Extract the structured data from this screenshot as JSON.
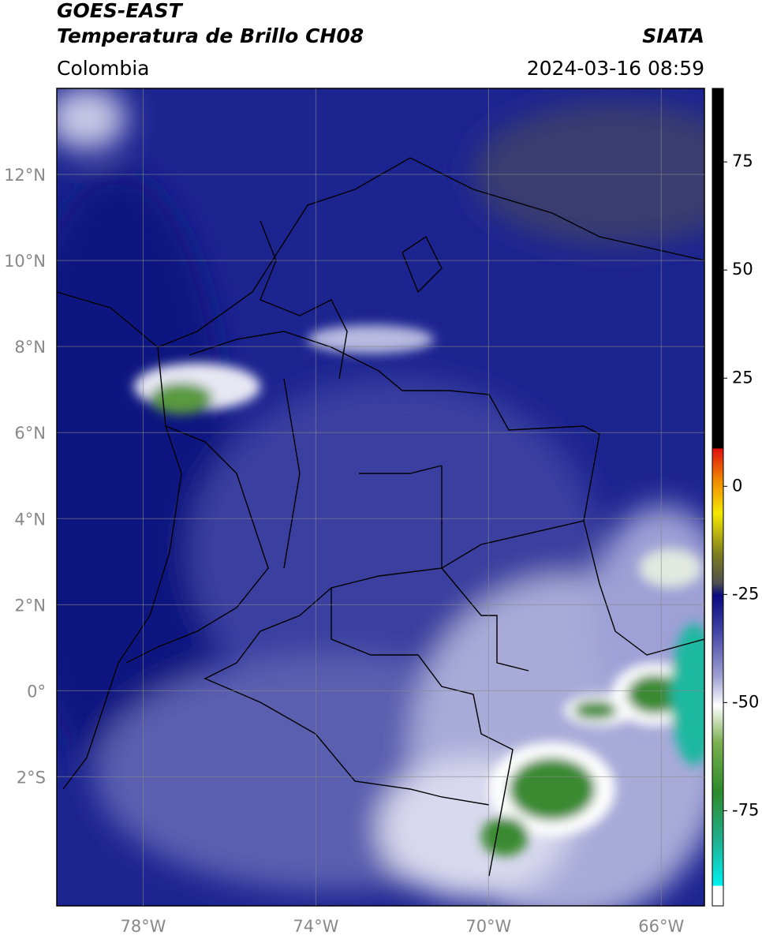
{
  "header": {
    "title": "GOES-EAST",
    "subtitle": "Temperatura de Brillo CH08",
    "source": "SIATA",
    "region": "Colombia",
    "datetime": "2024-03-16 08:59"
  },
  "map": {
    "lonlim": [
      -80,
      -65
    ],
    "latlim": [
      -5,
      14
    ],
    "lon_ticks": [
      {
        "value": -78,
        "label": "78°W"
      },
      {
        "value": -74,
        "label": "74°W"
      },
      {
        "value": -70,
        "label": "70°W"
      },
      {
        "value": -66,
        "label": "66°W"
      }
    ],
    "lat_ticks": [
      {
        "value": 12,
        "label": "12°N"
      },
      {
        "value": 10,
        "label": "10°N"
      },
      {
        "value": 8,
        "label": "8°N"
      },
      {
        "value": 6,
        "label": "6°N"
      },
      {
        "value": 4,
        "label": "4°N"
      },
      {
        "value": 2,
        "label": "2°N"
      },
      {
        "value": 0,
        "label": "0°"
      },
      {
        "value": -2,
        "label": "2°S"
      }
    ]
  },
  "colorbar": {
    "lim": [
      -97,
      92
    ],
    "ticks": [
      75,
      50,
      25,
      0,
      -25,
      -50,
      -75
    ]
  }
}
